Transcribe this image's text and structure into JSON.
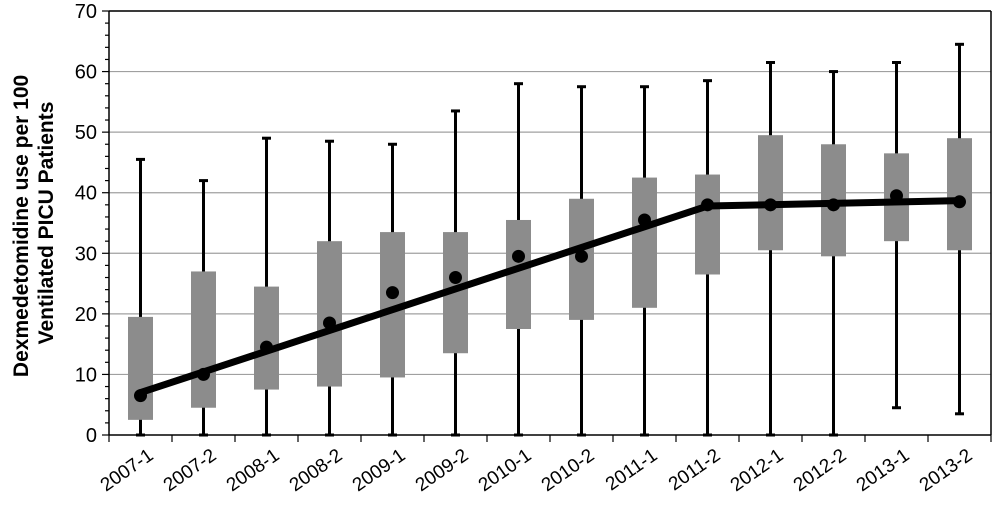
{
  "chart_data": {
    "type": "box",
    "title": "",
    "xlabel": "",
    "ylabel": "Dexmedetomidine use per 100 Ventilated PICU Patients",
    "ylabel_lines": [
      "Dexmedetomidine use per 100",
      "Ventilated PICU Patients"
    ],
    "ylim": [
      0,
      70
    ],
    "yticks": [
      0,
      10,
      20,
      30,
      40,
      50,
      60,
      70
    ],
    "grid": true,
    "categories": [
      "2007-1",
      "2007-2",
      "2008-1",
      "2008-2",
      "2009-1",
      "2009-2",
      "2010-1",
      "2010-2",
      "2011-1",
      "2011-2",
      "2012-1",
      "2012-2",
      "2013-1",
      "2013-2"
    ],
    "whisker_low": [
      0,
      0,
      0,
      0,
      0,
      0,
      0,
      0,
      0,
      0,
      0,
      0,
      4.5,
      3.5
    ],
    "whisker_high": [
      45.5,
      42,
      49,
      48.5,
      48,
      53.5,
      58,
      57.5,
      57.5,
      58.5,
      61.5,
      60,
      61.5,
      64.5
    ],
    "q1": [
      2.5,
      4.5,
      7.5,
      8,
      9.5,
      13.5,
      17.5,
      19,
      21,
      26.5,
      30.5,
      29.5,
      32,
      30.5
    ],
    "q3": [
      19.5,
      27,
      24.5,
      32,
      33.5,
      33.5,
      35.5,
      39,
      42.5,
      43,
      49.5,
      48,
      46.5,
      49
    ],
    "median_points": [
      6.5,
      10,
      14.5,
      18.5,
      23.5,
      26,
      29.5,
      29.5,
      35.5,
      38,
      38,
      38,
      39.5,
      38.5
    ],
    "trend_line": {
      "x": [
        "2007-1",
        "2011-2",
        "2013-2"
      ],
      "y": [
        7,
        37.8,
        38.7
      ]
    },
    "colors": {
      "box": "#8c8c8c",
      "whisker": "#000000",
      "point": "#000000",
      "trend": "#000000",
      "grid": "#a0a0a0"
    }
  }
}
